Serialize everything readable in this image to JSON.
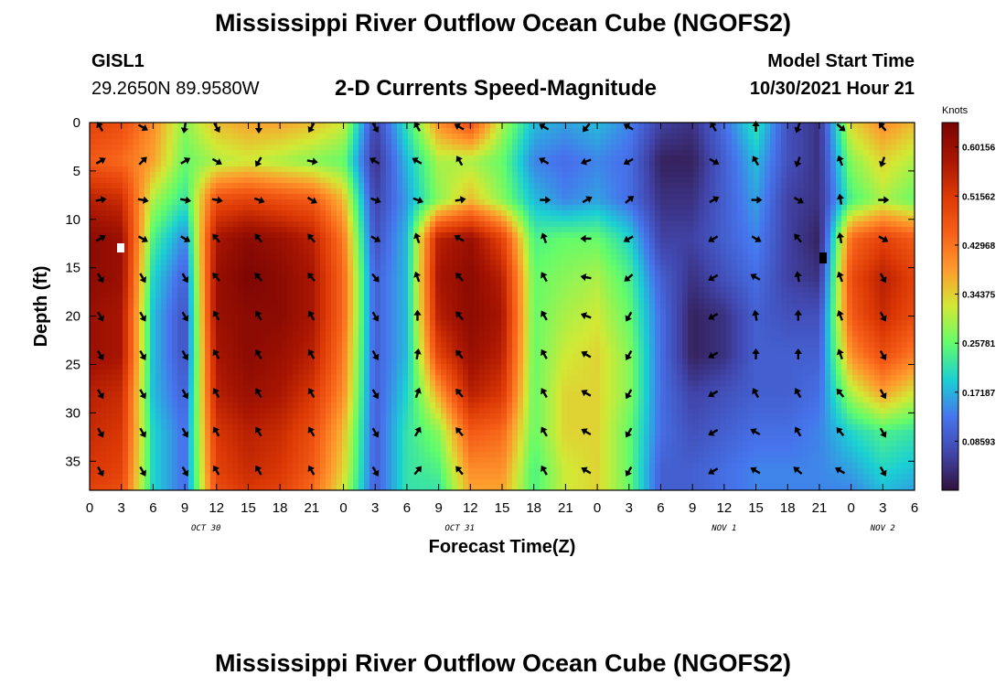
{
  "header": {
    "title": "Mississippi River Outflow Ocean Cube (NGOFS2)",
    "station": "GISL1",
    "coords": "29.2650N  89.9580W",
    "subtitle": "2-D Currents Speed-Magnitude",
    "model_start_label": "Model Start Time",
    "model_start_value": "10/30/2021 Hour 21"
  },
  "footer": {
    "title": "Mississippi River Outflow Ocean Cube (NGOFS2)"
  },
  "chart_data": {
    "type": "heatmap",
    "title": "2-D Currents Speed-Magnitude",
    "xlabel": "Forecast Time(Z)",
    "ylabel": "Depth (ft)",
    "units": "Knots",
    "xlim": [
      0,
      78
    ],
    "ylim": [
      0,
      38
    ],
    "x_ticks": [
      0,
      3,
      6,
      9,
      12,
      15,
      18,
      21,
      24,
      27,
      30,
      33,
      36,
      39,
      42,
      45,
      48,
      51,
      54,
      57,
      60,
      63,
      66,
      69,
      72,
      75,
      78
    ],
    "x_tick_labels": [
      "0",
      "3",
      "6",
      "9",
      "12",
      "15",
      "18",
      "21",
      "0",
      "3",
      "6",
      "9",
      "12",
      "15",
      "18",
      "21",
      "0",
      "3",
      "6",
      "9",
      "12",
      "15",
      "18",
      "21",
      "0",
      "3",
      "6"
    ],
    "y_ticks": [
      0,
      5,
      10,
      15,
      20,
      25,
      30,
      35
    ],
    "y_tick_labels": [
      "0",
      "5",
      "10",
      "15",
      "20",
      "25",
      "30",
      "35"
    ],
    "dates": [
      {
        "label": "OCT 30",
        "hour": 11
      },
      {
        "label": "OCT 31",
        "hour": 35
      },
      {
        "label": "NOV 1",
        "hour": 60
      },
      {
        "label": "NOV 2",
        "hour": 75
      }
    ],
    "colorbar": {
      "min": 0,
      "max": 0.6444,
      "labels": [
        "0.60156",
        "0.51562",
        "0.42968",
        "0.34375",
        "0.25781",
        "0.17187",
        "0.08593"
      ],
      "label_values": [
        0.60156,
        0.51562,
        0.42968,
        0.34375,
        0.25781,
        0.17187,
        0.08593
      ]
    },
    "time_hours": [
      0,
      3,
      6,
      9,
      12,
      15,
      18,
      21,
      24,
      27,
      30,
      33,
      36,
      39,
      42,
      45,
      48,
      51,
      54,
      57,
      60,
      63,
      66,
      69,
      72,
      75,
      78
    ],
    "depth_levels_ft": [
      0,
      4,
      8,
      12,
      16,
      20,
      24,
      28,
      32,
      36,
      38
    ],
    "speed_knots": [
      [
        0.5,
        0.48,
        0.4,
        0.28,
        0.36,
        0.38,
        0.38,
        0.36,
        0.32,
        0.06,
        0.22,
        0.4,
        0.48,
        0.3,
        0.18,
        0.16,
        0.18,
        0.14,
        0.06,
        0.04,
        0.12,
        0.22,
        0.08,
        0.04,
        0.34,
        0.4,
        0.36
      ],
      [
        0.46,
        0.44,
        0.38,
        0.26,
        0.3,
        0.32,
        0.3,
        0.28,
        0.26,
        0.04,
        0.18,
        0.3,
        0.3,
        0.26,
        0.14,
        0.12,
        0.14,
        0.12,
        0.02,
        0.02,
        0.1,
        0.18,
        0.08,
        0.04,
        0.28,
        0.34,
        0.3
      ],
      [
        0.56,
        0.54,
        0.3,
        0.22,
        0.48,
        0.5,
        0.48,
        0.46,
        0.36,
        0.06,
        0.16,
        0.28,
        0.36,
        0.28,
        0.18,
        0.14,
        0.16,
        0.12,
        0.04,
        0.04,
        0.1,
        0.16,
        0.06,
        0.04,
        0.24,
        0.3,
        0.26
      ],
      [
        0.62,
        0.6,
        0.24,
        0.14,
        0.58,
        0.62,
        0.6,
        0.56,
        0.42,
        0.08,
        0.18,
        0.56,
        0.6,
        0.5,
        0.24,
        0.26,
        0.26,
        0.2,
        0.06,
        0.06,
        0.1,
        0.14,
        0.06,
        0.02,
        0.44,
        0.5,
        0.46
      ],
      [
        0.62,
        0.6,
        0.2,
        0.1,
        0.6,
        0.64,
        0.62,
        0.58,
        0.44,
        0.1,
        0.18,
        0.58,
        0.62,
        0.56,
        0.26,
        0.28,
        0.3,
        0.24,
        0.1,
        0.04,
        0.08,
        0.12,
        0.06,
        0.04,
        0.48,
        0.56,
        0.5
      ],
      [
        0.6,
        0.58,
        0.18,
        0.08,
        0.6,
        0.62,
        0.62,
        0.58,
        0.44,
        0.1,
        0.18,
        0.56,
        0.62,
        0.58,
        0.26,
        0.3,
        0.32,
        0.26,
        0.12,
        0.02,
        0.04,
        0.1,
        0.08,
        0.08,
        0.46,
        0.54,
        0.48
      ],
      [
        0.6,
        0.58,
        0.18,
        0.08,
        0.58,
        0.62,
        0.6,
        0.56,
        0.42,
        0.1,
        0.18,
        0.5,
        0.6,
        0.56,
        0.26,
        0.32,
        0.34,
        0.28,
        0.12,
        0.02,
        0.04,
        0.1,
        0.1,
        0.1,
        0.4,
        0.48,
        0.42
      ],
      [
        0.56,
        0.54,
        0.18,
        0.1,
        0.56,
        0.6,
        0.58,
        0.52,
        0.4,
        0.1,
        0.2,
        0.38,
        0.56,
        0.52,
        0.26,
        0.34,
        0.34,
        0.28,
        0.12,
        0.06,
        0.08,
        0.1,
        0.1,
        0.12,
        0.3,
        0.38,
        0.32
      ],
      [
        0.54,
        0.52,
        0.2,
        0.12,
        0.52,
        0.56,
        0.54,
        0.48,
        0.36,
        0.1,
        0.22,
        0.28,
        0.46,
        0.44,
        0.26,
        0.34,
        0.34,
        0.26,
        0.12,
        0.08,
        0.1,
        0.12,
        0.12,
        0.14,
        0.2,
        0.24,
        0.22
      ],
      [
        0.52,
        0.5,
        0.2,
        0.12,
        0.5,
        0.54,
        0.52,
        0.46,
        0.34,
        0.1,
        0.22,
        0.24,
        0.4,
        0.4,
        0.24,
        0.32,
        0.34,
        0.26,
        0.1,
        0.1,
        0.12,
        0.14,
        0.14,
        0.14,
        0.16,
        0.2,
        0.18
      ],
      [
        0.5,
        0.48,
        0.2,
        0.12,
        0.48,
        0.52,
        0.5,
        0.44,
        0.32,
        0.1,
        0.22,
        0.22,
        0.38,
        0.38,
        0.24,
        0.32,
        0.34,
        0.26,
        0.1,
        0.1,
        0.12,
        0.14,
        0.14,
        0.14,
        0.14,
        0.18,
        0.16
      ]
    ],
    "vector_times": [
      1,
      5,
      9,
      12,
      16,
      21,
      27,
      31,
      35,
      43,
      47,
      51,
      59,
      63,
      67,
      71,
      75
    ],
    "vector_depths": [
      0,
      4,
      8,
      12,
      16,
      20,
      24,
      28,
      32,
      36
    ],
    "vector_direction_deg": [
      [
        330,
        120,
        190,
        150,
        180,
        210,
        150,
        330,
        300,
        300,
        220,
        300,
        330,
        0,
        200,
        130,
        320
      ],
      [
        60,
        45,
        60,
        120,
        210,
        100,
        300,
        300,
        330,
        300,
        250,
        240,
        120,
        330,
        200,
        340,
        200
      ],
      [
        80,
        100,
        100,
        100,
        110,
        120,
        110,
        110,
        80,
        90,
        60,
        50,
        60,
        90,
        120,
        350,
        90
      ],
      [
        60,
        120,
        120,
        320,
        320,
        320,
        120,
        340,
        300,
        340,
        270,
        240,
        240,
        120,
        320,
        350,
        120
      ],
      [
        150,
        150,
        150,
        320,
        320,
        320,
        140,
        340,
        320,
        330,
        280,
        230,
        240,
        300,
        350,
        340,
        150
      ],
      [
        150,
        150,
        150,
        330,
        330,
        330,
        150,
        0,
        320,
        330,
        290,
        210,
        240,
        350,
        0,
        340,
        150
      ],
      [
        150,
        150,
        150,
        330,
        330,
        330,
        150,
        10,
        320,
        330,
        300,
        210,
        240,
        0,
        0,
        340,
        150
      ],
      [
        150,
        150,
        150,
        330,
        330,
        330,
        150,
        20,
        320,
        330,
        300,
        210,
        240,
        330,
        330,
        320,
        150
      ],
      [
        150,
        150,
        150,
        330,
        330,
        330,
        150,
        30,
        320,
        330,
        300,
        210,
        240,
        300,
        330,
        320,
        150
      ],
      [
        150,
        150,
        150,
        330,
        330,
        330,
        150,
        40,
        320,
        330,
        300,
        210,
        240,
        300,
        310,
        300,
        150
      ]
    ]
  }
}
